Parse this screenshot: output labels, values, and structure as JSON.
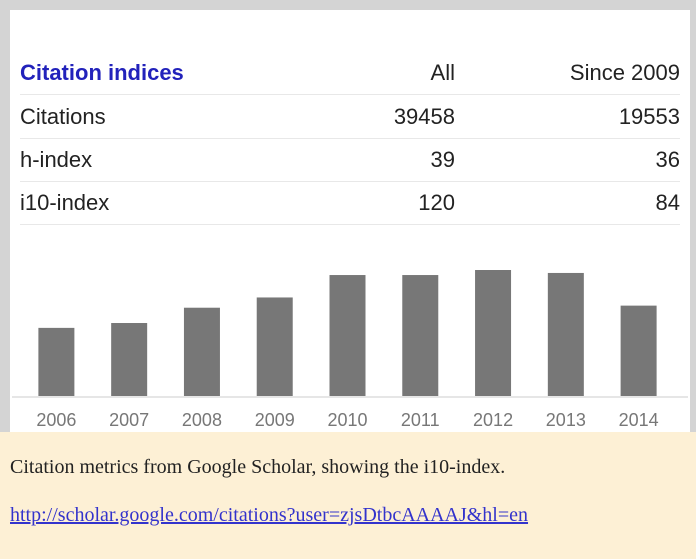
{
  "header": {
    "title": "Citation indices",
    "columns": [
      "All",
      "Since 2009"
    ]
  },
  "table": {
    "rows": [
      [
        "Citations",
        39458,
        19553
      ],
      [
        "h-index",
        39,
        36
      ],
      [
        "i10-index",
        120,
        84
      ]
    ]
  },
  "chart_data": {
    "type": "bar",
    "categories": [
      "2006",
      "2007",
      "2008",
      "2009",
      "2010",
      "2011",
      "2012",
      "2013",
      "2014"
    ],
    "values": [
      1960,
      2100,
      2540,
      2835,
      3480,
      3480,
      3625,
      3540,
      2600
    ],
    "color": "#777777"
  },
  "caption": {
    "text": "Citation metrics from Google Scholar, showing the i10-index.",
    "link": "http://scholar.google.com/citations?user=zjsDtbcAAAAJ&hl=en"
  }
}
